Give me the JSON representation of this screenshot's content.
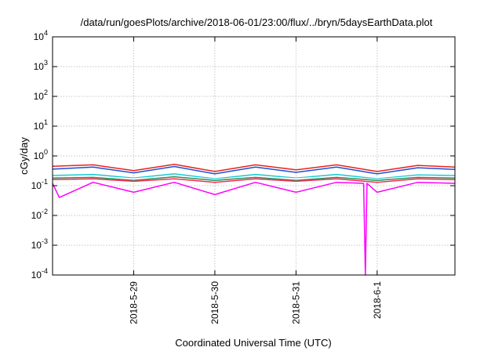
{
  "chart_data": {
    "type": "line",
    "title": "/data/run/goesPlots/archive/2018-06-01/23:00/flux/../bryn/5daysEarthData.plot",
    "xlabel": "Coordinated Universal Time (UTC)",
    "ylabel": "cGy/day",
    "x_range": [
      "2018-05-28T00:00",
      "2018-06-01T23:00"
    ],
    "yscale": "log",
    "ylim": [
      0.0001,
      10000
    ],
    "y_ticks": [
      {
        "base": "10",
        "exp": "-4",
        "value": 0.0001
      },
      {
        "base": "10",
        "exp": "-3",
        "value": 0.001
      },
      {
        "base": "10",
        "exp": "-2",
        "value": 0.01
      },
      {
        "base": "10",
        "exp": "-1",
        "value": 0.1
      },
      {
        "base": "10",
        "exp": "0",
        "value": 1
      },
      {
        "base": "10",
        "exp": "1",
        "value": 10
      },
      {
        "base": "10",
        "exp": "2",
        "value": 100
      },
      {
        "base": "10",
        "exp": "3",
        "value": 1000
      },
      {
        "base": "10",
        "exp": "4",
        "value": 10000
      }
    ],
    "x_ticks": [
      {
        "label": "2018-5-29",
        "x": "2018-05-29T00:00"
      },
      {
        "label": "2018-5-30",
        "x": "2018-05-30T00:00"
      },
      {
        "label": "2018-5-31",
        "x": "2018-05-31T00:00"
      },
      {
        "label": "2018-6-1",
        "x": "2018-06-01T00:00"
      }
    ],
    "grid": true,
    "legend": "none",
    "series": [
      {
        "color": "#e8231d",
        "x": [
          "2018-05-28T00:00",
          "2018-05-28T12:00",
          "2018-05-29T00:00",
          "2018-05-29T12:00",
          "2018-05-30T00:00",
          "2018-05-30T12:00",
          "2018-05-31T00:00",
          "2018-05-31T12:00",
          "2018-06-01T00:00",
          "2018-06-01T12:00",
          "2018-06-01T23:00"
        ],
        "values": [
          0.45,
          0.5,
          0.32,
          0.52,
          0.3,
          0.5,
          0.34,
          0.5,
          0.3,
          0.48,
          0.42
        ]
      },
      {
        "color": "#1f4fd8",
        "x": [
          "2018-05-28T00:00",
          "2018-05-28T12:00",
          "2018-05-29T00:00",
          "2018-05-29T12:00",
          "2018-05-30T00:00",
          "2018-05-30T12:00",
          "2018-05-31T00:00",
          "2018-05-31T12:00",
          "2018-06-01T00:00",
          "2018-06-01T12:00",
          "2018-06-01T23:00"
        ],
        "values": [
          0.36,
          0.42,
          0.27,
          0.44,
          0.25,
          0.42,
          0.28,
          0.42,
          0.25,
          0.4,
          0.35
        ]
      },
      {
        "color": "#19c8d0",
        "x": [
          "2018-05-28T00:00",
          "2018-05-28T12:00",
          "2018-05-29T00:00",
          "2018-05-29T12:00",
          "2018-05-30T00:00",
          "2018-05-30T12:00",
          "2018-05-31T00:00",
          "2018-05-31T12:00",
          "2018-06-01T00:00",
          "2018-06-01T12:00",
          "2018-06-01T23:00"
        ],
        "values": [
          0.22,
          0.24,
          0.18,
          0.25,
          0.17,
          0.24,
          0.18,
          0.24,
          0.17,
          0.23,
          0.22
        ]
      },
      {
        "color": "#ffffff",
        "x": [
          "2018-05-28T00:00",
          "2018-05-28T12:00",
          "2018-05-29T00:00",
          "2018-05-29T12:00",
          "2018-05-30T00:00",
          "2018-05-30T12:00",
          "2018-05-31T00:00",
          "2018-05-31T12:00",
          "2018-06-01T00:00",
          "2018-06-01T12:00",
          "2018-06-01T23:00"
        ],
        "values": [
          0.2,
          0.21,
          0.17,
          0.22,
          0.16,
          0.21,
          0.17,
          0.21,
          0.16,
          0.21,
          0.2
        ]
      },
      {
        "color": "#2e8b57",
        "x": [
          "2018-05-28T00:00",
          "2018-05-28T12:00",
          "2018-05-29T00:00",
          "2018-05-29T12:00",
          "2018-05-30T00:00",
          "2018-05-30T12:00",
          "2018-05-31T00:00",
          "2018-05-31T12:00",
          "2018-06-01T00:00",
          "2018-06-01T12:00",
          "2018-06-01T23:00"
        ],
        "values": [
          0.18,
          0.19,
          0.15,
          0.2,
          0.15,
          0.19,
          0.15,
          0.19,
          0.15,
          0.19,
          0.18
        ]
      },
      {
        "color": "#ff2a4f",
        "x": [
          "2018-05-28T00:00",
          "2018-05-28T12:00",
          "2018-05-29T00:00",
          "2018-05-29T12:00",
          "2018-05-30T00:00",
          "2018-05-30T12:00",
          "2018-05-31T00:00",
          "2018-05-31T12:00",
          "2018-06-01T00:00",
          "2018-06-01T12:00",
          "2018-06-01T23:00"
        ],
        "values": [
          0.16,
          0.17,
          0.14,
          0.17,
          0.13,
          0.17,
          0.14,
          0.17,
          0.13,
          0.17,
          0.16
        ]
      },
      {
        "color": "#ff00ff",
        "x": [
          "2018-05-28T00:00",
          "2018-05-28T02:00",
          "2018-05-28T12:00",
          "2018-05-29T00:00",
          "2018-05-29T12:00",
          "2018-05-30T00:00",
          "2018-05-30T12:00",
          "2018-05-31T00:00",
          "2018-05-31T12:00",
          "2018-05-31T20:00",
          "2018-05-31T20:30",
          "2018-05-31T21:00",
          "2018-06-01T00:00",
          "2018-06-01T12:00",
          "2018-06-01T23:00"
        ],
        "values": [
          0.12,
          0.04,
          0.13,
          0.06,
          0.13,
          0.05,
          0.13,
          0.06,
          0.13,
          0.12,
          0.0001,
          0.12,
          0.06,
          0.13,
          0.12
        ]
      }
    ]
  }
}
